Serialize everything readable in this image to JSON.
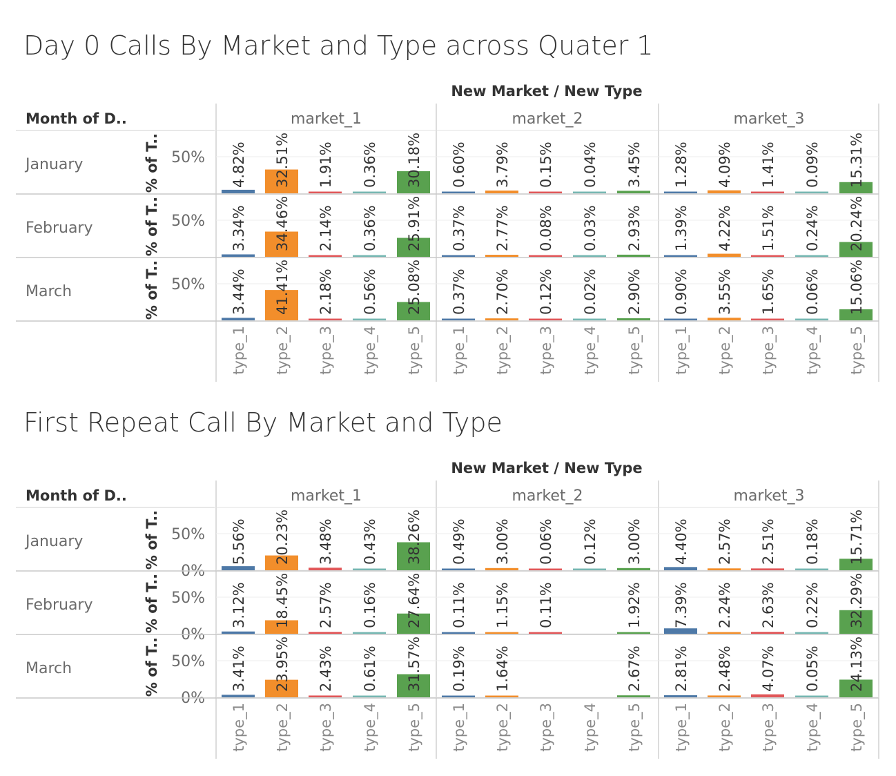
{
  "colors": {
    "type_1": "#4e79a7",
    "type_2": "#f28e2b",
    "type_3": "#e15759",
    "type_4": "#76b7b2",
    "type_5": "#59a14f"
  },
  "chart_data": [
    {
      "type": "bar",
      "title": "Day 0 Calls By Market and Type across Quater 1",
      "column_header": "New Market  /  New Type",
      "row_header": "Month of D..",
      "ylabel": "% of T..",
      "yticks": [
        "50%"
      ],
      "ylim": [
        0,
        70
      ],
      "markets": [
        "market_1",
        "market_2",
        "market_3"
      ],
      "categories": [
        "type_1",
        "type_2",
        "type_3",
        "type_4",
        "type_5"
      ],
      "rows": [
        {
          "month": "January",
          "values": [
            [
              4.82,
              32.51,
              1.91,
              0.36,
              30.18
            ],
            [
              0.6,
              3.79,
              0.15,
              0.04,
              3.45
            ],
            [
              1.28,
              4.09,
              1.41,
              0.09,
              15.31
            ]
          ],
          "labels": [
            [
              "4.82%",
              "32.51%",
              "1.91%",
              "0.36%",
              "30.18%"
            ],
            [
              "0.60%",
              "3.79%",
              "0.15%",
              "0.04%",
              "3.45%"
            ],
            [
              "1.28%",
              "4.09%",
              "1.41%",
              "0.09%",
              "15.31%"
            ]
          ]
        },
        {
          "month": "February",
          "values": [
            [
              3.34,
              34.46,
              2.14,
              0.36,
              25.91
            ],
            [
              0.37,
              2.77,
              0.08,
              0.03,
              2.93
            ],
            [
              1.39,
              4.22,
              1.51,
              0.24,
              20.24
            ]
          ],
          "labels": [
            [
              "3.34%",
              "34.46%",
              "2.14%",
              "0.36%",
              "25.91%"
            ],
            [
              "0.37%",
              "2.77%",
              "0.08%",
              "0.03%",
              "2.93%"
            ],
            [
              "1.39%",
              "4.22%",
              "1.51%",
              "0.24%",
              "20.24%"
            ]
          ]
        },
        {
          "month": "March",
          "values": [
            [
              3.44,
              41.41,
              2.18,
              0.56,
              25.08
            ],
            [
              0.37,
              2.7,
              0.12,
              0.02,
              2.9
            ],
            [
              0.9,
              3.55,
              1.65,
              0.06,
              15.06
            ]
          ],
          "labels": [
            [
              "3.44%",
              "41.41%",
              "2.18%",
              "0.56%",
              "25.08%"
            ],
            [
              "0.37%",
              "2.70%",
              "0.12%",
              "0.02%",
              "2.90%"
            ],
            [
              "0.90%",
              "3.55%",
              "1.65%",
              "0.06%",
              "15.06%"
            ]
          ]
        }
      ]
    },
    {
      "type": "bar",
      "title": "First Repeat Call By Market and Type",
      "column_header": "New Market  /  New Type",
      "row_header": "Month of D..",
      "ylabel": "% of T..",
      "yticks": [
        "50%",
        "0%"
      ],
      "ylim": [
        0,
        70
      ],
      "markets": [
        "market_1",
        "market_2",
        "market_3"
      ],
      "categories": [
        "type_1",
        "type_2",
        "type_3",
        "type_4",
        "type_5"
      ],
      "rows": [
        {
          "month": "January",
          "values": [
            [
              5.56,
              20.23,
              3.48,
              0.43,
              38.26
            ],
            [
              0.49,
              3.0,
              0.06,
              0.12,
              3.0
            ],
            [
              4.4,
              2.57,
              2.51,
              0.18,
              15.71
            ]
          ],
          "labels": [
            [
              "5.56%",
              "20.23%",
              "3.48%",
              "0.43%",
              "38.26%"
            ],
            [
              "0.49%",
              "3.00%",
              "0.06%",
              "0.12%",
              "3.00%"
            ],
            [
              "4.40%",
              "2.57%",
              "2.51%",
              "0.18%",
              "15.71%"
            ]
          ]
        },
        {
          "month": "February",
          "values": [
            [
              3.12,
              18.45,
              2.57,
              0.16,
              27.64
            ],
            [
              0.11,
              1.15,
              0.11,
              null,
              1.92
            ],
            [
              7.39,
              2.24,
              2.63,
              0.22,
              32.29
            ]
          ],
          "labels": [
            [
              "3.12%",
              "18.45%",
              "2.57%",
              "0.16%",
              "27.64%"
            ],
            [
              "0.11%",
              "1.15%",
              "0.11%",
              "",
              "1.92%"
            ],
            [
              "7.39%",
              "2.24%",
              "2.63%",
              "0.22%",
              "32.29%"
            ]
          ]
        },
        {
          "month": "March",
          "values": [
            [
              3.41,
              23.95,
              2.43,
              0.61,
              31.57
            ],
            [
              0.19,
              1.64,
              null,
              null,
              2.67
            ],
            [
              2.81,
              2.48,
              4.07,
              0.05,
              24.13
            ]
          ],
          "labels": [
            [
              "3.41%",
              "23.95%",
              "2.43%",
              "0.61%",
              "31.57%"
            ],
            [
              "0.19%",
              "1.64%",
              "",
              "",
              "2.67%"
            ],
            [
              "2.81%",
              "2.48%",
              "4.07%",
              "0.05%",
              "24.13%"
            ]
          ]
        }
      ]
    }
  ]
}
